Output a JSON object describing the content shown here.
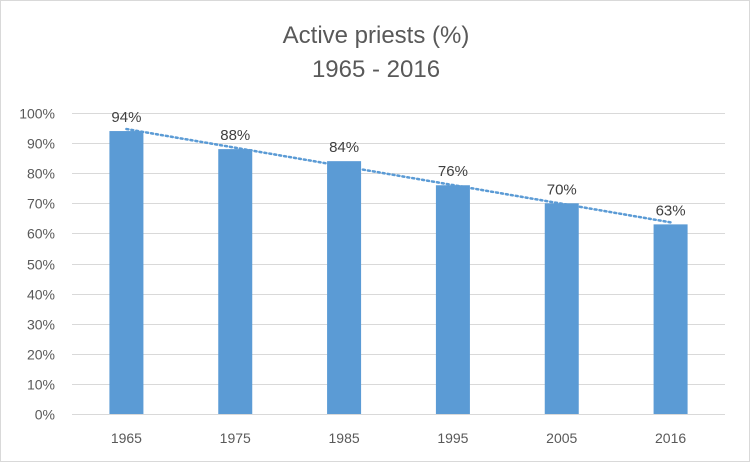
{
  "chart_data": {
    "type": "bar",
    "title": "Active priests (%)",
    "subtitle": "1965 - 2016",
    "categories": [
      "1965",
      "1975",
      "1985",
      "1995",
      "2005",
      "2016"
    ],
    "values": [
      94,
      88,
      84,
      76,
      70,
      63
    ],
    "data_labels": [
      "94%",
      "88%",
      "84%",
      "76%",
      "70%",
      "63%"
    ],
    "ylim": [
      0,
      100
    ],
    "yticks": [
      0,
      10,
      20,
      30,
      40,
      50,
      60,
      70,
      80,
      90,
      100
    ],
    "ytick_labels": [
      "0%",
      "10%",
      "20%",
      "30%",
      "40%",
      "50%",
      "60%",
      "70%",
      "80%",
      "90%",
      "100%"
    ],
    "xlabel": "",
    "ylabel": "",
    "grid": true,
    "legend": "none",
    "trendline": "linear",
    "colors": {
      "bar": "#5b9bd5",
      "trendline": "#5b9bd5",
      "grid": "#d9d9d9",
      "text": "#595959"
    }
  }
}
